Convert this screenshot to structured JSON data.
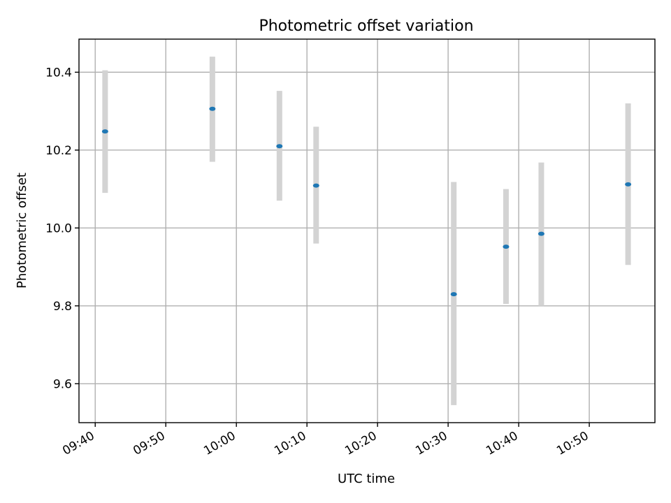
{
  "chart_data": {
    "type": "scatter",
    "title": "Photometric offset variation",
    "xlabel": "UTC time",
    "ylabel": "Photometric offset",
    "x_tick_labels": [
      "09:40",
      "09:50",
      "10:00",
      "10:10",
      "10:20",
      "10:30",
      "10:40",
      "10:50"
    ],
    "x_tick_minutes": [
      580,
      590,
      600,
      610,
      620,
      630,
      640,
      650
    ],
    "xlim_minutes": [
      577.7,
      659.3
    ],
    "y_tick_labels": [
      "9.6",
      "9.8",
      "10.0",
      "10.2",
      "10.4"
    ],
    "y_ticks": [
      9.6,
      9.8,
      10.0,
      10.2,
      10.4
    ],
    "ylim": [
      9.5,
      10.485
    ],
    "grid": true,
    "series": [
      {
        "x_minutes": [
          581.4,
          596.6,
          606.1,
          611.3,
          630.8,
          638.2,
          643.2,
          655.5
        ],
        "x_times": [
          "09:41",
          "09:57",
          "10:06",
          "10:11",
          "10:31",
          "10:38",
          "10:43",
          "10:55"
        ],
        "y": [
          10.248,
          10.306,
          10.21,
          10.109,
          9.83,
          9.952,
          9.985,
          10.112
        ],
        "y_lower": [
          10.09,
          10.17,
          10.07,
          9.96,
          9.545,
          9.805,
          9.8,
          9.905
        ],
        "y_upper": [
          10.405,
          10.44,
          10.352,
          10.26,
          10.118,
          10.1,
          10.168,
          10.32
        ],
        "point_color": "#1f77b4",
        "errorbar_color": "#d3d3d3"
      }
    ]
  }
}
